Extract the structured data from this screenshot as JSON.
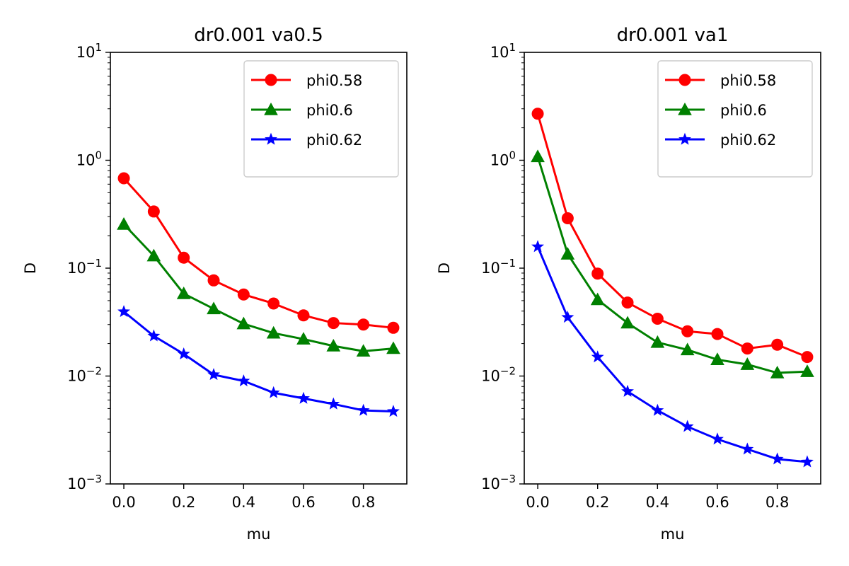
{
  "chart_data": [
    {
      "type": "line",
      "title": "dr0.001 va0.5",
      "xlabel": "mu",
      "ylabel": "D",
      "yscale": "log",
      "ylim": [
        0.001,
        10
      ],
      "xlim": [
        -0.045,
        0.945
      ],
      "xticks": [
        "0.0",
        "0.2",
        "0.4",
        "0.6",
        "0.8"
      ],
      "xtick_values": [
        0.0,
        0.2,
        0.4,
        0.6,
        0.8
      ],
      "ytick_base": "10",
      "ytick_exponents": [
        "−3",
        "−2",
        "−1",
        "0",
        "1"
      ],
      "legend_position": "upper right",
      "x": [
        0.0,
        0.1,
        0.2,
        0.3,
        0.4,
        0.5,
        0.6,
        0.7,
        0.8,
        0.9
      ],
      "series": [
        {
          "name": "phi0.58",
          "color": "#ff0000",
          "marker": "circle",
          "values": [
            0.68,
            0.335,
            0.125,
            0.077,
            0.057,
            0.047,
            0.0365,
            0.031,
            0.03,
            0.028
          ]
        },
        {
          "name": "phi0.6",
          "color": "#008000",
          "marker": "triangle",
          "values": [
            0.255,
            0.13,
            0.058,
            0.042,
            0.0305,
            0.025,
            0.022,
            0.019,
            0.017,
            0.018
          ]
        },
        {
          "name": "phi0.62",
          "color": "#0000ff",
          "marker": "star",
          "values": [
            0.0395,
            0.0235,
            0.016,
            0.0103,
            0.009,
            0.007,
            0.0062,
            0.0055,
            0.0048,
            0.0047
          ]
        }
      ]
    },
    {
      "type": "line",
      "title": "dr0.001 va1",
      "xlabel": "mu",
      "ylabel": "D",
      "yscale": "log",
      "ylim": [
        0.001,
        10
      ],
      "xlim": [
        -0.045,
        0.945
      ],
      "xticks": [
        "0.0",
        "0.2",
        "0.4",
        "0.6",
        "0.8"
      ],
      "xtick_values": [
        0.0,
        0.2,
        0.4,
        0.6,
        0.8
      ],
      "ytick_base": "10",
      "ytick_exponents": [
        "−3",
        "−2",
        "−1",
        "0",
        "1"
      ],
      "legend_position": "upper right",
      "x": [
        0.0,
        0.1,
        0.2,
        0.3,
        0.4,
        0.5,
        0.6,
        0.7,
        0.8,
        0.9
      ],
      "series": [
        {
          "name": "phi0.58",
          "color": "#ff0000",
          "marker": "circle",
          "values": [
            2.7,
            0.29,
            0.089,
            0.048,
            0.034,
            0.026,
            0.0245,
            0.018,
            0.0195,
            0.015
          ]
        },
        {
          "name": "phi0.6",
          "color": "#008000",
          "marker": "triangle",
          "values": [
            1.08,
            0.135,
            0.051,
            0.031,
            0.0205,
            0.0175,
            0.0142,
            0.0128,
            0.0107,
            0.011
          ]
        },
        {
          "name": "phi0.62",
          "color": "#0000ff",
          "marker": "star",
          "values": [
            0.158,
            0.035,
            0.015,
            0.0072,
            0.0048,
            0.0034,
            0.0026,
            0.0021,
            0.0017,
            0.0016
          ]
        }
      ]
    }
  ]
}
